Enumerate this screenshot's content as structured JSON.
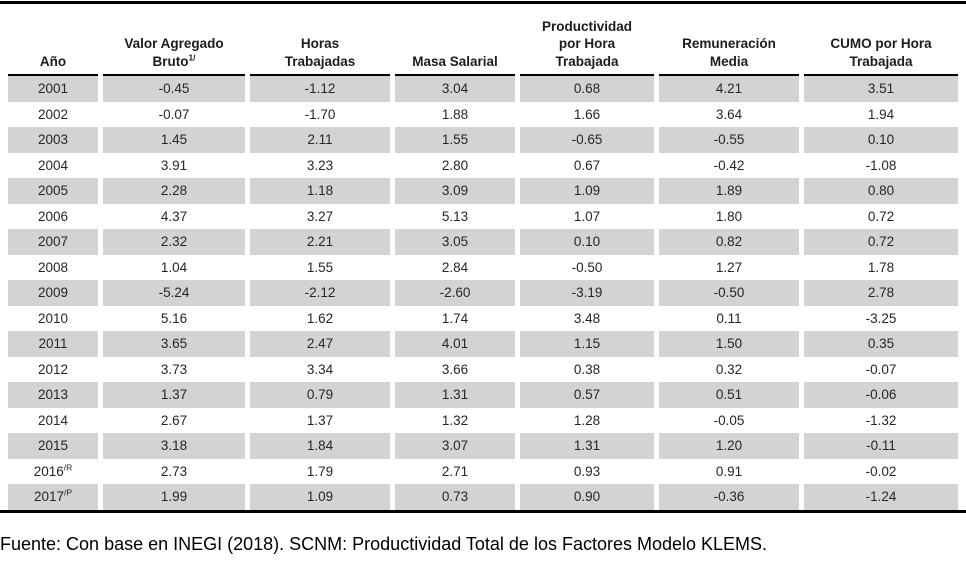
{
  "colors": {
    "row_alt": "#d3d3d3",
    "rule": "#000000",
    "text": "#212121"
  },
  "table": {
    "columns": [
      {
        "label": "Año",
        "sup": ""
      },
      {
        "label": "Valor Agregado Bruto",
        "sup": "1/"
      },
      {
        "label": "Horas Trabajadas",
        "sup": ""
      },
      {
        "label": "Masa Salarial",
        "sup": ""
      },
      {
        "label": "Productividad por Hora Trabajada",
        "sup": ""
      },
      {
        "label": "Remuneración Media",
        "sup": ""
      },
      {
        "label": "CUMO por Hora Trabajada",
        "sup": ""
      }
    ],
    "rows": [
      {
        "year": "2001",
        "sup": "",
        "values": [
          "-0.45",
          "-1.12",
          "3.04",
          "0.68",
          "4.21",
          "3.51"
        ]
      },
      {
        "year": "2002",
        "sup": "",
        "values": [
          "-0.07",
          "-1.70",
          "1.88",
          "1.66",
          "3.64",
          "1.94"
        ]
      },
      {
        "year": "2003",
        "sup": "",
        "values": [
          "1.45",
          "2.11",
          "1.55",
          "-0.65",
          "-0.55",
          "0.10"
        ]
      },
      {
        "year": "2004",
        "sup": "",
        "values": [
          "3.91",
          "3.23",
          "2.80",
          "0.67",
          "-0.42",
          "-1.08"
        ]
      },
      {
        "year": "2005",
        "sup": "",
        "values": [
          "2.28",
          "1.18",
          "3.09",
          "1.09",
          "1.89",
          "0.80"
        ]
      },
      {
        "year": "2006",
        "sup": "",
        "values": [
          "4.37",
          "3.27",
          "5.13",
          "1.07",
          "1.80",
          "0.72"
        ]
      },
      {
        "year": "2007",
        "sup": "",
        "values": [
          "2.32",
          "2.21",
          "3.05",
          "0.10",
          "0.82",
          "0.72"
        ]
      },
      {
        "year": "2008",
        "sup": "",
        "values": [
          "1.04",
          "1.55",
          "2.84",
          "-0.50",
          "1.27",
          "1.78"
        ]
      },
      {
        "year": "2009",
        "sup": "",
        "values": [
          "-5.24",
          "-2.12",
          "-2.60",
          "-3.19",
          "-0.50",
          "2.78"
        ]
      },
      {
        "year": "2010",
        "sup": "",
        "values": [
          "5.16",
          "1.62",
          "1.74",
          "3.48",
          "0.11",
          "-3.25"
        ]
      },
      {
        "year": "2011",
        "sup": "",
        "values": [
          "3.65",
          "2.47",
          "4.01",
          "1.15",
          "1.50",
          "0.35"
        ]
      },
      {
        "year": "2012",
        "sup": "",
        "values": [
          "3.73",
          "3.34",
          "3.66",
          "0.38",
          "0.32",
          "-0.07"
        ]
      },
      {
        "year": "2013",
        "sup": "",
        "values": [
          "1.37",
          "0.79",
          "1.31",
          "0.57",
          "0.51",
          "-0.06"
        ]
      },
      {
        "year": "2014",
        "sup": "",
        "values": [
          "2.67",
          "1.37",
          "1.32",
          "1.28",
          "-0.05",
          "-1.32"
        ]
      },
      {
        "year": "2015",
        "sup": "",
        "values": [
          "3.18",
          "1.84",
          "3.07",
          "1.31",
          "1.20",
          "-0.11"
        ]
      },
      {
        "year": "2016",
        "sup": "/R",
        "values": [
          "2.73",
          "1.79",
          "2.71",
          "0.93",
          "0.91",
          "-0.02"
        ]
      },
      {
        "year": "2017",
        "sup": "/P",
        "values": [
          "1.99",
          "1.09",
          "0.73",
          "0.90",
          "-0.36",
          "-1.24"
        ]
      }
    ]
  },
  "footer": {
    "source": "Fuente: Con base en INEGI (2018). SCNM: Productividad Total de los Factores Modelo KLEMS."
  }
}
